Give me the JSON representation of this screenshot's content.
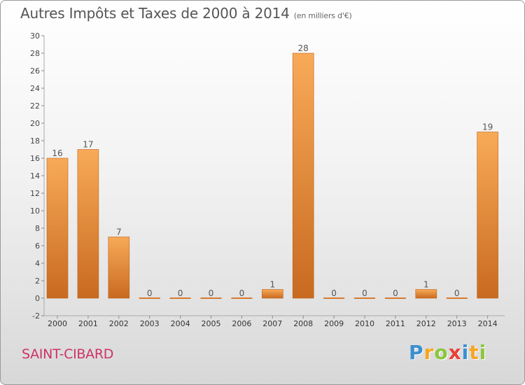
{
  "header": {
    "title": "Autres Impôts et Taxes de 2000 à 2014",
    "subtitle": "(en milliers d'€)"
  },
  "commune": "SAINT-CIBARD",
  "logo": {
    "text": "Proxiti",
    "letters": [
      "P",
      "r",
      "o",
      "x",
      "i",
      "t",
      "i"
    ]
  },
  "colors": {
    "bar_light": "#f7a95a",
    "bar_dark": "#c8681e",
    "commune": "#cc3366"
  },
  "chart_data": {
    "type": "bar",
    "title": "Autres Impôts et Taxes de 2000 à 2014",
    "subtitle": "(en milliers d'€)",
    "xlabel": "",
    "ylabel": "",
    "categories": [
      "2000",
      "2001",
      "2002",
      "2003",
      "2004",
      "2005",
      "2006",
      "2007",
      "2008",
      "2009",
      "2010",
      "2011",
      "2012",
      "2013",
      "2014"
    ],
    "values": [
      16,
      17,
      7,
      0,
      0,
      0,
      0,
      1,
      28,
      0,
      0,
      0,
      1,
      0,
      19
    ],
    "data_labels": [
      "16",
      "17",
      "7",
      "0",
      "0",
      "0",
      "0",
      "1",
      "28",
      "0",
      "0",
      "0",
      "1",
      "0",
      "19"
    ],
    "ylim": [
      -2,
      30
    ],
    "yticks": [
      -2,
      0,
      2,
      4,
      6,
      8,
      10,
      12,
      14,
      16,
      18,
      20,
      22,
      24,
      26,
      28,
      30
    ],
    "grid": false,
    "legend": "none"
  }
}
